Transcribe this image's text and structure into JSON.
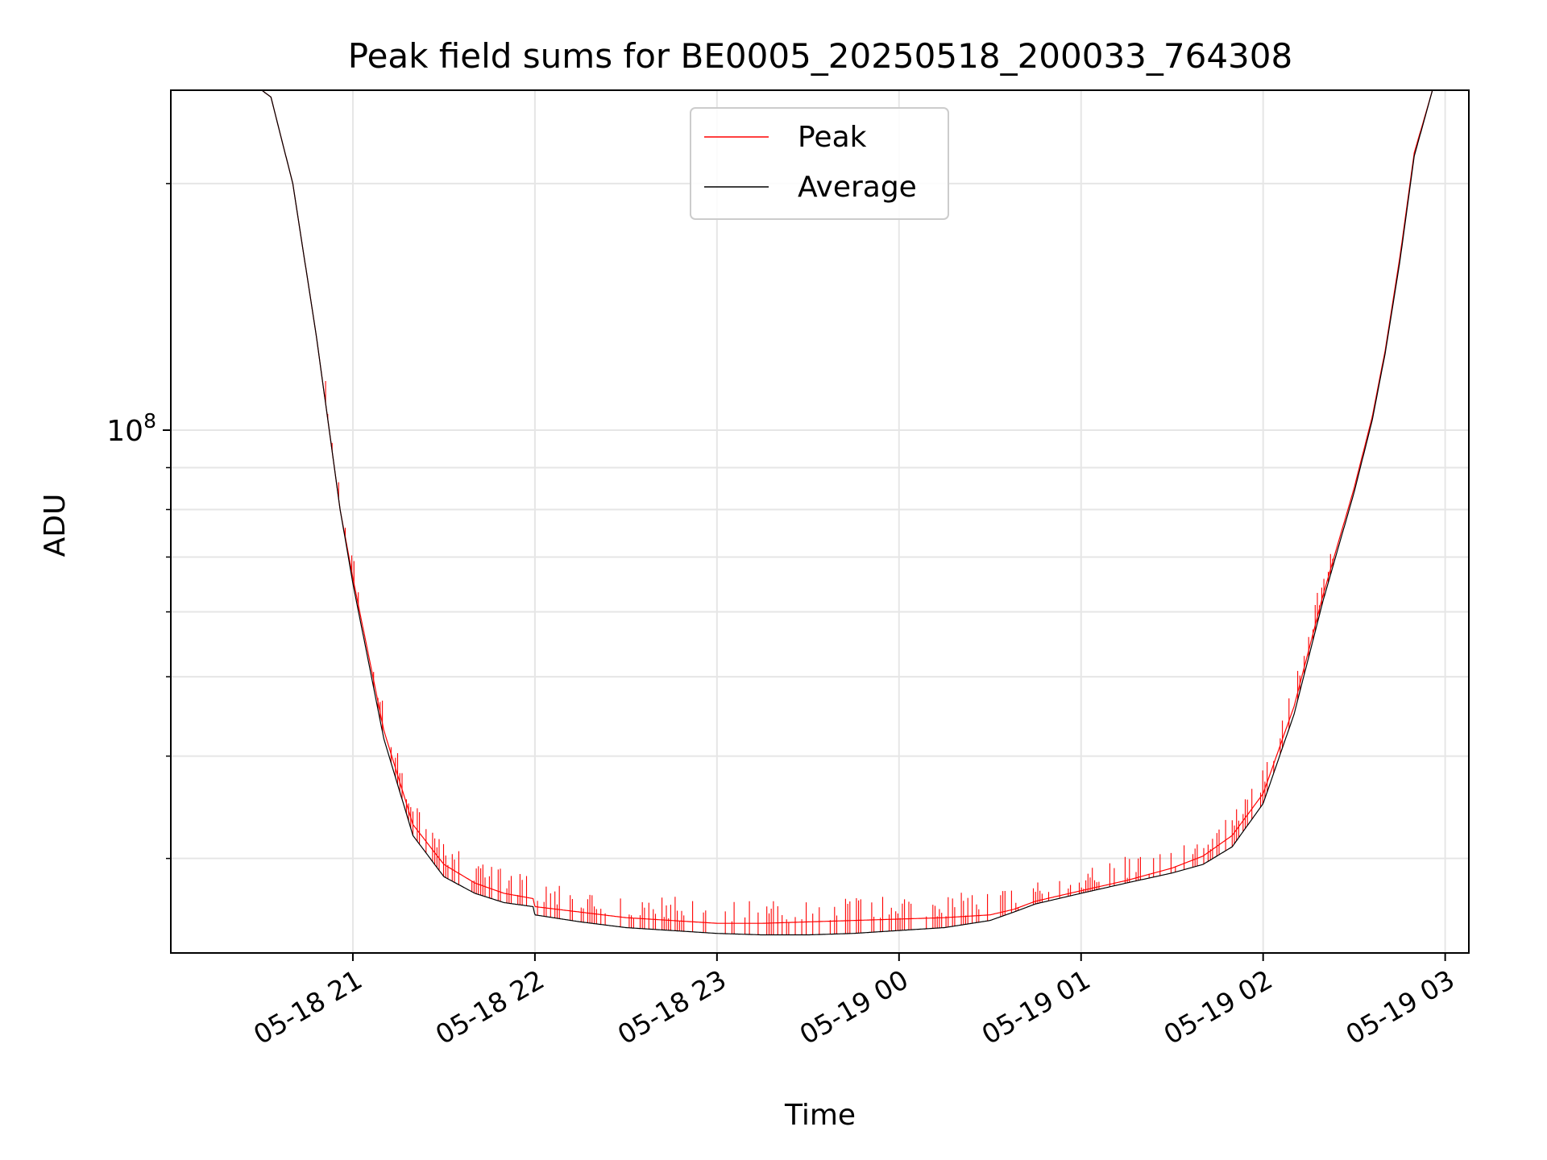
{
  "chart_data": {
    "type": "line",
    "title": "Peak field sums for BE0005_20250518_200033_764308",
    "xlabel": "Time",
    "ylabel": "ADU",
    "yscale": "log",
    "grid": true,
    "legend_placement": "upper-center",
    "x_ticks": [
      "05-18 21",
      "05-18 22",
      "05-18 23",
      "05-19 00",
      "05-19 01",
      "05-19 02",
      "05-19 03"
    ],
    "y_major_tick": "10^8",
    "y_major_tick_value": 100000000,
    "x_range_hours": [
      20.0,
      27.13
    ],
    "y_range": [
      23000000.0,
      260000000.0
    ],
    "colors": {
      "peak": "#ff0000",
      "average": "#000000"
    },
    "series": [
      {
        "name": "Peak",
        "color": "#ff0000",
        "note_spikes": "frequent upward spikes above the average between 21:00 and 02:20",
        "x_hours": [
          20.5,
          20.55,
          20.67,
          20.8,
          20.93,
          21.0,
          21.17,
          21.33,
          21.5,
          21.67,
          21.83,
          21.99,
          22.0,
          22.25,
          22.5,
          22.75,
          23.0,
          23.25,
          23.5,
          23.75,
          24.0,
          24.25,
          24.5,
          24.63,
          24.75,
          25.0,
          25.25,
          25.5,
          25.67,
          25.83,
          26.0,
          26.17,
          26.33,
          26.5,
          26.6,
          26.67,
          26.75,
          26.83,
          26.93,
          27.0
        ],
        "y": [
          260000000.0,
          255000000.0,
          200000000.0,
          130000000.0,
          80000000.0,
          66000000.0,
          43000000.0,
          33000000.0,
          29500000.0,
          28000000.0,
          27200000.0,
          26800000.0,
          26200000.0,
          25800000.0,
          25400000.0,
          25200000.0,
          25000000.0,
          25000000.0,
          25100000.0,
          25200000.0,
          25300000.0,
          25400000.0,
          25600000.0,
          26000000.0,
          26600000.0,
          27400000.0,
          28200000.0,
          29200000.0,
          30200000.0,
          32000000.0,
          36000000.0,
          46000000.0,
          63000000.0,
          85000000.0,
          104000000.0,
          125000000.0,
          162000000.0,
          218000000.0,
          260000000.0,
          260000000.0
        ]
      },
      {
        "name": "Average",
        "color": "#000000",
        "x_hours": [
          20.5,
          20.55,
          20.67,
          20.8,
          20.93,
          21.0,
          21.17,
          21.33,
          21.5,
          21.67,
          21.83,
          21.99,
          22.0,
          22.25,
          22.5,
          22.75,
          23.0,
          23.25,
          23.5,
          23.75,
          24.0,
          24.25,
          24.5,
          24.63,
          24.75,
          25.0,
          25.25,
          25.5,
          25.67,
          25.83,
          26.0,
          26.17,
          26.33,
          26.5,
          26.6,
          26.67,
          26.75,
          26.83,
          26.93,
          27.0
        ],
        "y": [
          260000000.0,
          255000000.0,
          200000000.0,
          130000000.0,
          80000000.0,
          65000000.0,
          42000000.0,
          32000000.0,
          28500000.0,
          27200000.0,
          26500000.0,
          26200000.0,
          25600000.0,
          25100000.0,
          24700000.0,
          24500000.0,
          24300000.0,
          24200000.0,
          24200000.0,
          24300000.0,
          24500000.0,
          24700000.0,
          25200000.0,
          25800000.0,
          26400000.0,
          27200000.0,
          28000000.0,
          28800000.0,
          29500000.0,
          31000000.0,
          35000000.0,
          45000000.0,
          62000000.0,
          84000000.0,
          103000000.0,
          124000000.0,
          160000000.0,
          216000000.0,
          260000000.0,
          260000000.0
        ]
      }
    ]
  }
}
